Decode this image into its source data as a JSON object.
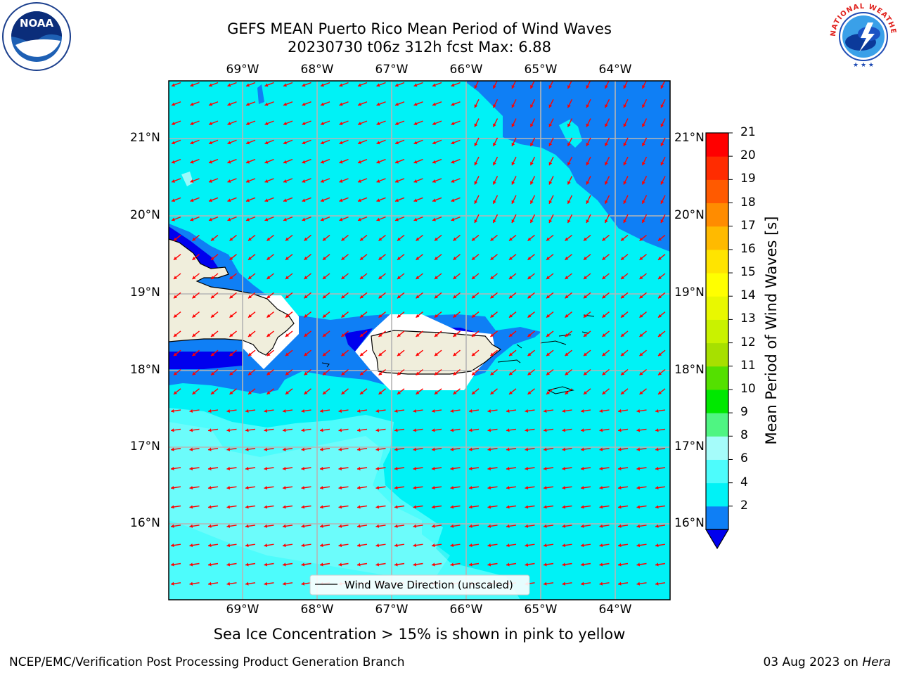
{
  "header": {
    "title_line1": "GEFS MEAN Puerto Rico Mean Period of Wind Waves",
    "title_line2": "20230730 t06z 312h fcst   Max: 6.88"
  },
  "map": {
    "lat_labels": [
      "21°N",
      "20°N",
      "19°N",
      "18°N",
      "17°N",
      "16°N"
    ],
    "lon_labels": [
      "69°W",
      "68°W",
      "67°W",
      "66°W",
      "65°W",
      "64°W"
    ],
    "legend_label": "Wind Wave Direction (unscaled)",
    "arrow_color": "#ff0000",
    "land_color": "#f0eedc"
  },
  "colorbar": {
    "label": "Mean Period of Wind Waves [s]",
    "ticks": [
      "21",
      "20",
      "19",
      "18",
      "17",
      "16",
      "15",
      "14",
      "13",
      "12",
      "11",
      "10",
      "9",
      "8",
      "6",
      "4",
      "2"
    ],
    "colors": [
      "#0000ee",
      "#0f7ff5",
      "#00f2f6",
      "#4dfcfc",
      "#a5fcfa",
      "#4ff582",
      "#00e800",
      "#54e000",
      "#a7e000",
      "#c9f200",
      "#e9f800",
      "#ffff00",
      "#ffe400",
      "#ffba00",
      "#ff8c00",
      "#ff5a00",
      "#ff2c00",
      "#ff0000"
    ]
  },
  "footer": {
    "note": "Sea Ice Concentration > 15% is shown in pink to yellow",
    "credit_left": "NCEP/EMC/Verification Post Processing Product Generation Branch",
    "credit_date": "03 Aug 2023 on",
    "credit_machine": "Hera"
  },
  "logos": {
    "noaa_text": "NOAA",
    "nws_text": "NATIONAL WEATHER SERVICE"
  }
}
